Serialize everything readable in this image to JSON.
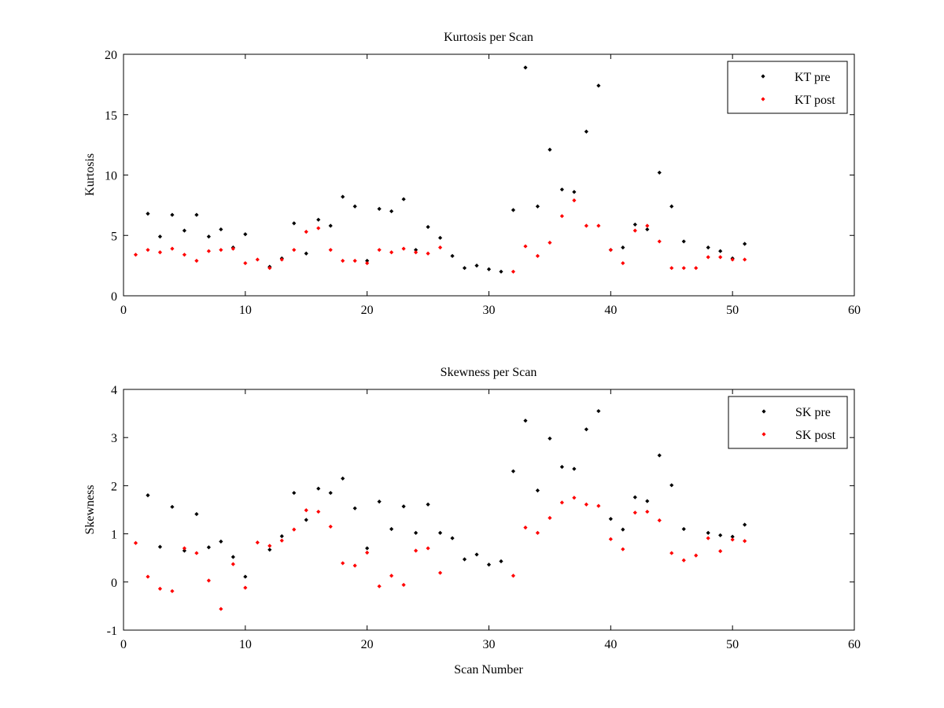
{
  "chart_data": [
    {
      "type": "scatter",
      "title": "Kurtosis per Scan",
      "xlabel": "",
      "ylabel": "Kurtosis",
      "xlim": [
        0,
        60
      ],
      "ylim": [
        0,
        20
      ],
      "xticks": [
        "0",
        "10",
        "20",
        "30",
        "40",
        "50",
        "60"
      ],
      "yticks": [
        "0",
        "5",
        "10",
        "15",
        "20"
      ],
      "grid": false,
      "legend_position": "top-right",
      "series": [
        {
          "name": "KT pre",
          "color": "#000000",
          "x": [
            2,
            3,
            4,
            5,
            6,
            7,
            8,
            9,
            10,
            12,
            13,
            14,
            15,
            16,
            17,
            18,
            19,
            20,
            21,
            22,
            23,
            24,
            25,
            26,
            27,
            28,
            29,
            30,
            31,
            32,
            33,
            34,
            35,
            36,
            37,
            38,
            39,
            40,
            41,
            42,
            43,
            44,
            45,
            46,
            48,
            49,
            50,
            51
          ],
          "y": [
            6.8,
            4.9,
            6.7,
            5.4,
            6.7,
            4.9,
            5.5,
            4.0,
            5.1,
            2.4,
            3.1,
            6.0,
            3.5,
            6.3,
            5.8,
            8.2,
            7.4,
            2.9,
            7.2,
            7.0,
            8.0,
            3.8,
            5.7,
            4.8,
            3.3,
            2.3,
            2.5,
            2.2,
            2.0,
            7.1,
            18.9,
            7.4,
            12.1,
            8.8,
            8.6,
            13.6,
            17.4,
            3.8,
            4.0,
            5.9,
            5.5,
            10.2,
            7.4,
            4.5,
            4.0,
            3.7,
            3.1,
            4.3
          ]
        },
        {
          "name": "KT post",
          "color": "#ff0000",
          "x": [
            1,
            2,
            3,
            4,
            5,
            6,
            7,
            8,
            9,
            10,
            11,
            12,
            13,
            14,
            15,
            16,
            17,
            18,
            19,
            20,
            21,
            22,
            23,
            24,
            25,
            26,
            32,
            33,
            34,
            35,
            36,
            37,
            38,
            39,
            40,
            41,
            42,
            43,
            44,
            45,
            46,
            47,
            48,
            49,
            50,
            51
          ],
          "y": [
            3.4,
            3.8,
            3.6,
            3.9,
            3.4,
            2.9,
            3.7,
            3.8,
            3.9,
            2.7,
            3.0,
            2.3,
            3.0,
            3.8,
            5.3,
            5.6,
            3.8,
            2.9,
            2.9,
            2.7,
            3.8,
            3.6,
            3.9,
            3.6,
            3.5,
            4.0,
            2.0,
            4.1,
            3.3,
            4.4,
            6.6,
            7.9,
            5.8,
            5.8,
            3.8,
            2.7,
            5.4,
            5.8,
            4.5,
            2.3,
            2.3,
            2.3,
            3.2,
            3.2,
            3.0,
            3.0
          ]
        }
      ]
    },
    {
      "type": "scatter",
      "title": "Skewness per Scan",
      "xlabel": "Scan Number",
      "ylabel": "Skewness",
      "xlim": [
        0,
        60
      ],
      "ylim": [
        -1,
        4
      ],
      "xticks": [
        "0",
        "10",
        "20",
        "30",
        "40",
        "50",
        "60"
      ],
      "yticks": [
        "-1",
        "0",
        "1",
        "2",
        "3",
        "4"
      ],
      "grid": false,
      "legend_position": "top-right",
      "series": [
        {
          "name": "SK pre",
          "color": "#000000",
          "x": [
            2,
            3,
            4,
            5,
            6,
            7,
            8,
            9,
            10,
            12,
            13,
            14,
            15,
            16,
            17,
            18,
            19,
            20,
            21,
            22,
            23,
            24,
            25,
            26,
            27,
            28,
            29,
            30,
            31,
            32,
            33,
            34,
            35,
            36,
            37,
            38,
            39,
            40,
            41,
            42,
            43,
            44,
            45,
            46,
            48,
            49,
            50,
            51
          ],
          "y": [
            1.8,
            0.73,
            1.56,
            0.65,
            1.41,
            0.72,
            0.84,
            0.52,
            0.11,
            0.67,
            0.95,
            1.85,
            1.29,
            1.94,
            1.85,
            2.15,
            1.53,
            0.7,
            1.67,
            1.1,
            1.57,
            1.02,
            1.61,
            1.02,
            0.91,
            0.47,
            0.57,
            0.36,
            0.43,
            2.3,
            3.35,
            1.9,
            2.98,
            2.39,
            2.35,
            3.17,
            3.55,
            1.31,
            1.09,
            1.76,
            1.68,
            2.63,
            2.01,
            1.1,
            1.02,
            0.97,
            0.94,
            1.19
          ]
        },
        {
          "name": "SK post",
          "color": "#ff0000",
          "x": [
            1,
            2,
            3,
            4,
            5,
            6,
            7,
            8,
            9,
            10,
            11,
            12,
            13,
            14,
            15,
            16,
            17,
            18,
            19,
            20,
            21,
            22,
            23,
            24,
            25,
            26,
            32,
            33,
            34,
            35,
            36,
            37,
            38,
            39,
            40,
            41,
            42,
            43,
            44,
            45,
            46,
            47,
            48,
            49,
            50,
            51
          ],
          "y": [
            0.81,
            0.11,
            -0.14,
            -0.19,
            0.7,
            0.6,
            0.03,
            -0.56,
            0.37,
            -0.12,
            0.82,
            0.75,
            0.86,
            1.09,
            1.49,
            1.46,
            1.15,
            0.39,
            0.34,
            0.61,
            -0.09,
            0.13,
            -0.06,
            0.65,
            0.7,
            0.19,
            0.13,
            1.13,
            1.02,
            1.33,
            1.65,
            1.75,
            1.61,
            1.58,
            0.89,
            0.68,
            1.44,
            1.46,
            1.28,
            0.6,
            0.45,
            0.55,
            0.91,
            0.64,
            0.88,
            0.85
          ]
        }
      ]
    }
  ]
}
